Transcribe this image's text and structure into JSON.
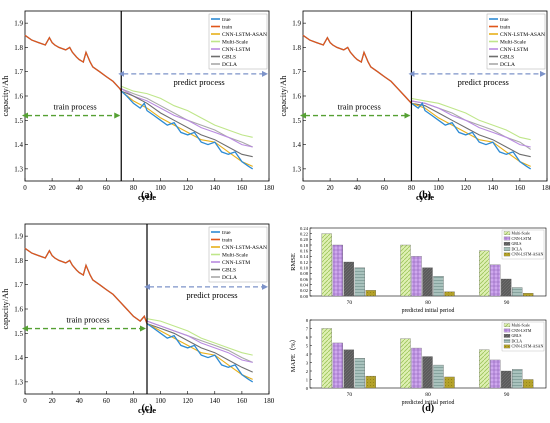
{
  "colors": {
    "true": "#2e8bd4",
    "train": "#e0561a",
    "CNN-LSTM-ASAN": "#e8b01a",
    "Multi-Scale": "#bfe68a",
    "CNN-LSTM": "#b98be0",
    "GBLS": "#6e6e6e",
    "DCLA": "#a8a8a8",
    "arrow_train": "#55a033",
    "arrow_predict": "#7d93c9",
    "bar_ms": "#cfe89a",
    "bar_cnn": "#c59be8",
    "bar_gbls": "#666666",
    "bar_dcla": "#9fb8b3",
    "bar_asan": "#b7a323"
  },
  "chart_data": [
    {
      "type": "line",
      "label": "(a)",
      "xlabel": "cycle",
      "ylabel": "capacity/Ah",
      "xlim": [
        0,
        180
      ],
      "ylim": [
        1.25,
        1.95
      ],
      "xticks": [
        "0",
        "20",
        "40",
        "60",
        "80",
        "100",
        "120",
        "140",
        "160",
        "180"
      ],
      "yticks": [
        "1.3",
        "1.4",
        "1.5",
        "1.6",
        "1.7",
        "1.8",
        "1.9"
      ],
      "split_cycle": 71,
      "train_text": "train process",
      "predict_text": "predict process",
      "legend": [
        "true",
        "train",
        "CNN-LSTM-ASAN",
        "Multi-Scale",
        "CNN-LSTM",
        "GBLS",
        "DCLA"
      ],
      "true_x": [
        0,
        5,
        10,
        15,
        18,
        20,
        22,
        25,
        30,
        33,
        35,
        38,
        40,
        43,
        45,
        48,
        50,
        55,
        60,
        65,
        70,
        71,
        75,
        80,
        85,
        88,
        90,
        95,
        100,
        105,
        110,
        115,
        120,
        125,
        130,
        135,
        140,
        145,
        150,
        155,
        160,
        165,
        168
      ],
      "true_y": [
        1.85,
        1.83,
        1.82,
        1.81,
        1.84,
        1.82,
        1.81,
        1.8,
        1.79,
        1.8,
        1.78,
        1.76,
        1.75,
        1.74,
        1.78,
        1.74,
        1.72,
        1.7,
        1.68,
        1.66,
        1.63,
        1.62,
        1.6,
        1.57,
        1.55,
        1.57,
        1.54,
        1.52,
        1.5,
        1.48,
        1.49,
        1.45,
        1.44,
        1.45,
        1.41,
        1.4,
        1.41,
        1.37,
        1.36,
        1.37,
        1.33,
        1.31,
        1.3
      ],
      "predictions": [
        {
          "name": "CNN-LSTM-ASAN",
          "x": [
            71,
            80,
            90,
            100,
            110,
            120,
            130,
            140,
            150,
            160,
            168
          ],
          "y": [
            1.62,
            1.58,
            1.55,
            1.51,
            1.48,
            1.45,
            1.42,
            1.41,
            1.37,
            1.33,
            1.31
          ]
        },
        {
          "name": "Multi-Scale",
          "x": [
            71,
            80,
            90,
            100,
            110,
            120,
            130,
            140,
            150,
            160,
            168
          ],
          "y": [
            1.64,
            1.62,
            1.61,
            1.59,
            1.56,
            1.54,
            1.51,
            1.48,
            1.46,
            1.44,
            1.43
          ]
        },
        {
          "name": "CNN-LSTM",
          "x": [
            71,
            80,
            90,
            100,
            110,
            120,
            130,
            140,
            150,
            160,
            168
          ],
          "y": [
            1.63,
            1.6,
            1.58,
            1.55,
            1.52,
            1.5,
            1.47,
            1.45,
            1.43,
            1.4,
            1.39
          ]
        },
        {
          "name": "GBLS",
          "x": [
            71,
            80,
            90,
            100,
            110,
            120,
            130,
            140,
            150,
            160,
            168
          ],
          "y": [
            1.62,
            1.6,
            1.57,
            1.53,
            1.5,
            1.47,
            1.44,
            1.42,
            1.39,
            1.36,
            1.35
          ]
        },
        {
          "name": "DCLA",
          "x": [
            71,
            80,
            90,
            100,
            110,
            120,
            130,
            140,
            150,
            160,
            168
          ],
          "y": [
            1.63,
            1.61,
            1.59,
            1.56,
            1.53,
            1.5,
            1.48,
            1.46,
            1.43,
            1.41,
            1.39
          ]
        }
      ]
    },
    {
      "type": "line",
      "label": "(b)",
      "xlabel": "cycle",
      "ylabel": "capacity/Ah",
      "xlim": [
        0,
        180
      ],
      "ylim": [
        1.25,
        1.95
      ],
      "xticks": [
        "0",
        "20",
        "40",
        "60",
        "80",
        "100",
        "120",
        "140",
        "160",
        "180"
      ],
      "yticks": [
        "1.3",
        "1.4",
        "1.5",
        "1.6",
        "1.7",
        "1.8",
        "1.9"
      ],
      "split_cycle": 80,
      "train_text": "train process",
      "predict_text": "predict process",
      "legend": [
        "true",
        "train",
        "CNN-LSTM-ASAN",
        "Multi-Scale",
        "CNN-LSTM",
        "GBLS",
        "DCLA"
      ],
      "true_x": [
        0,
        5,
        10,
        15,
        18,
        20,
        22,
        25,
        30,
        33,
        35,
        38,
        40,
        43,
        45,
        48,
        50,
        55,
        60,
        65,
        70,
        75,
        80,
        85,
        88,
        90,
        95,
        100,
        105,
        110,
        115,
        120,
        125,
        130,
        135,
        140,
        145,
        150,
        155,
        160,
        165,
        168
      ],
      "true_y": [
        1.85,
        1.83,
        1.82,
        1.81,
        1.84,
        1.82,
        1.81,
        1.8,
        1.79,
        1.8,
        1.78,
        1.76,
        1.75,
        1.74,
        1.78,
        1.74,
        1.72,
        1.7,
        1.68,
        1.66,
        1.63,
        1.6,
        1.57,
        1.55,
        1.57,
        1.54,
        1.52,
        1.5,
        1.48,
        1.49,
        1.45,
        1.44,
        1.45,
        1.41,
        1.4,
        1.41,
        1.37,
        1.36,
        1.37,
        1.33,
        1.31,
        1.3
      ],
      "predictions": [
        {
          "name": "CNN-LSTM-ASAN",
          "x": [
            80,
            90,
            100,
            110,
            120,
            130,
            140,
            150,
            160,
            168
          ],
          "y": [
            1.57,
            1.55,
            1.51,
            1.48,
            1.45,
            1.42,
            1.41,
            1.37,
            1.33,
            1.31
          ]
        },
        {
          "name": "Multi-Scale",
          "x": [
            80,
            90,
            100,
            110,
            120,
            130,
            140,
            150,
            160,
            168
          ],
          "y": [
            1.59,
            1.58,
            1.57,
            1.55,
            1.53,
            1.5,
            1.48,
            1.46,
            1.43,
            1.42
          ]
        },
        {
          "name": "CNN-LSTM",
          "x": [
            80,
            90,
            100,
            110,
            120,
            130,
            140,
            150,
            160,
            168
          ],
          "y": [
            1.58,
            1.57,
            1.55,
            1.52,
            1.5,
            1.47,
            1.45,
            1.43,
            1.4,
            1.39
          ]
        },
        {
          "name": "GBLS",
          "x": [
            80,
            90,
            100,
            110,
            120,
            130,
            140,
            150,
            160,
            168
          ],
          "y": [
            1.57,
            1.56,
            1.53,
            1.5,
            1.47,
            1.44,
            1.42,
            1.39,
            1.36,
            1.35
          ]
        },
        {
          "name": "DCLA",
          "x": [
            80,
            90,
            100,
            110,
            120,
            130,
            140,
            150,
            160,
            168
          ],
          "y": [
            1.58,
            1.57,
            1.55,
            1.53,
            1.5,
            1.48,
            1.46,
            1.43,
            1.41,
            1.38
          ]
        }
      ]
    },
    {
      "type": "line",
      "label": "(c)",
      "xlabel": "cycle",
      "ylabel": "capacity/Ah",
      "xlim": [
        0,
        180
      ],
      "ylim": [
        1.25,
        1.95
      ],
      "xticks": [
        "0",
        "20",
        "40",
        "60",
        "80",
        "100",
        "120",
        "140",
        "160",
        "180"
      ],
      "yticks": [
        "1.3",
        "1.4",
        "1.5",
        "1.6",
        "1.7",
        "1.8",
        "1.9"
      ],
      "split_cycle": 90,
      "train_text": "train process",
      "predict_text": "predict process",
      "legend": [
        "true",
        "train",
        "CNN-LSTM-ASAN",
        "Multi-Scale",
        "CNN-LSTM",
        "GBLS",
        "DCLA"
      ],
      "true_x": [
        0,
        5,
        10,
        15,
        18,
        20,
        22,
        25,
        30,
        33,
        35,
        38,
        40,
        43,
        45,
        48,
        50,
        55,
        60,
        65,
        70,
        75,
        80,
        85,
        88,
        90,
        95,
        100,
        105,
        110,
        115,
        120,
        125,
        130,
        135,
        140,
        145,
        150,
        155,
        160,
        165,
        168
      ],
      "true_y": [
        1.85,
        1.83,
        1.82,
        1.81,
        1.84,
        1.82,
        1.81,
        1.8,
        1.79,
        1.8,
        1.78,
        1.76,
        1.75,
        1.74,
        1.78,
        1.74,
        1.72,
        1.7,
        1.68,
        1.66,
        1.63,
        1.6,
        1.57,
        1.55,
        1.57,
        1.54,
        1.52,
        1.5,
        1.48,
        1.49,
        1.45,
        1.44,
        1.45,
        1.41,
        1.4,
        1.41,
        1.37,
        1.36,
        1.37,
        1.33,
        1.31,
        1.3
      ],
      "predictions": [
        {
          "name": "CNN-LSTM-ASAN",
          "x": [
            90,
            100,
            110,
            120,
            130,
            140,
            150,
            160,
            168
          ],
          "y": [
            1.54,
            1.51,
            1.48,
            1.45,
            1.42,
            1.41,
            1.37,
            1.33,
            1.31
          ]
        },
        {
          "name": "Multi-Scale",
          "x": [
            90,
            100,
            110,
            120,
            130,
            140,
            150,
            160,
            168
          ],
          "y": [
            1.56,
            1.55,
            1.53,
            1.51,
            1.48,
            1.46,
            1.44,
            1.42,
            1.41
          ]
        },
        {
          "name": "CNN-LSTM",
          "x": [
            90,
            100,
            110,
            120,
            130,
            140,
            150,
            160,
            168
          ],
          "y": [
            1.55,
            1.53,
            1.51,
            1.49,
            1.46,
            1.44,
            1.42,
            1.39,
            1.38
          ]
        },
        {
          "name": "GBLS",
          "x": [
            90,
            100,
            110,
            120,
            130,
            140,
            150,
            160,
            168
          ],
          "y": [
            1.54,
            1.52,
            1.5,
            1.47,
            1.44,
            1.42,
            1.39,
            1.36,
            1.34
          ]
        },
        {
          "name": "DCLA",
          "x": [
            90,
            100,
            110,
            120,
            130,
            140,
            150,
            160,
            168
          ],
          "y": [
            1.55,
            1.53,
            1.51,
            1.49,
            1.47,
            1.45,
            1.43,
            1.4,
            1.38
          ]
        }
      ]
    },
    {
      "type": "bar",
      "label": "(d)",
      "panels": [
        {
          "ylabel": "RMSE",
          "xlabel": "predicted initial period",
          "categories": [
            "70",
            "80",
            "90"
          ],
          "ylim": [
            0,
            0.24
          ],
          "yticks": [
            "0.00",
            "0.02",
            "0.04",
            "0.06",
            "0.08",
            "0.10",
            "0.12",
            "0.14",
            "0.16",
            "0.18",
            "0.20",
            "0.22",
            "0.24"
          ],
          "legend": [
            "Multi-Scale",
            "CNN-LSTM",
            "GBLS",
            "DCLA",
            "CNN-LSTM-ASAN"
          ],
          "series": [
            {
              "name": "Multi-Scale",
              "values": [
                0.22,
                0.18,
                0.16
              ]
            },
            {
              "name": "CNN-LSTM",
              "values": [
                0.18,
                0.14,
                0.11
              ]
            },
            {
              "name": "GBLS",
              "values": [
                0.12,
                0.1,
                0.06
              ]
            },
            {
              "name": "DCLA",
              "values": [
                0.1,
                0.07,
                0.03
              ]
            },
            {
              "name": "CNN-LSTM-ASAN",
              "values": [
                0.02,
                0.015,
                0.01
              ]
            }
          ]
        },
        {
          "ylabel": "MAPE（%）",
          "xlabel": "predicted initial period",
          "categories": [
            "70",
            "80",
            "90"
          ],
          "ylim": [
            0,
            8
          ],
          "yticks": [
            "0",
            "1",
            "2",
            "3",
            "4",
            "5",
            "6",
            "7",
            "8"
          ],
          "legend": [
            "Multi-Scale",
            "CNN-LSTM",
            "GBLS",
            "DCLA",
            "CNN-LSTM-ASAN"
          ],
          "series": [
            {
              "name": "Multi-Scale",
              "values": [
                7.0,
                5.8,
                4.5
              ]
            },
            {
              "name": "CNN-LSTM",
              "values": [
                5.3,
                4.7,
                3.3
              ]
            },
            {
              "name": "GBLS",
              "values": [
                4.5,
                3.7,
                2.0
              ]
            },
            {
              "name": "DCLA",
              "values": [
                3.5,
                2.7,
                2.2
              ]
            },
            {
              "name": "CNN-LSTM-ASAN",
              "values": [
                1.4,
                1.3,
                1.0
              ]
            }
          ]
        }
      ]
    }
  ]
}
